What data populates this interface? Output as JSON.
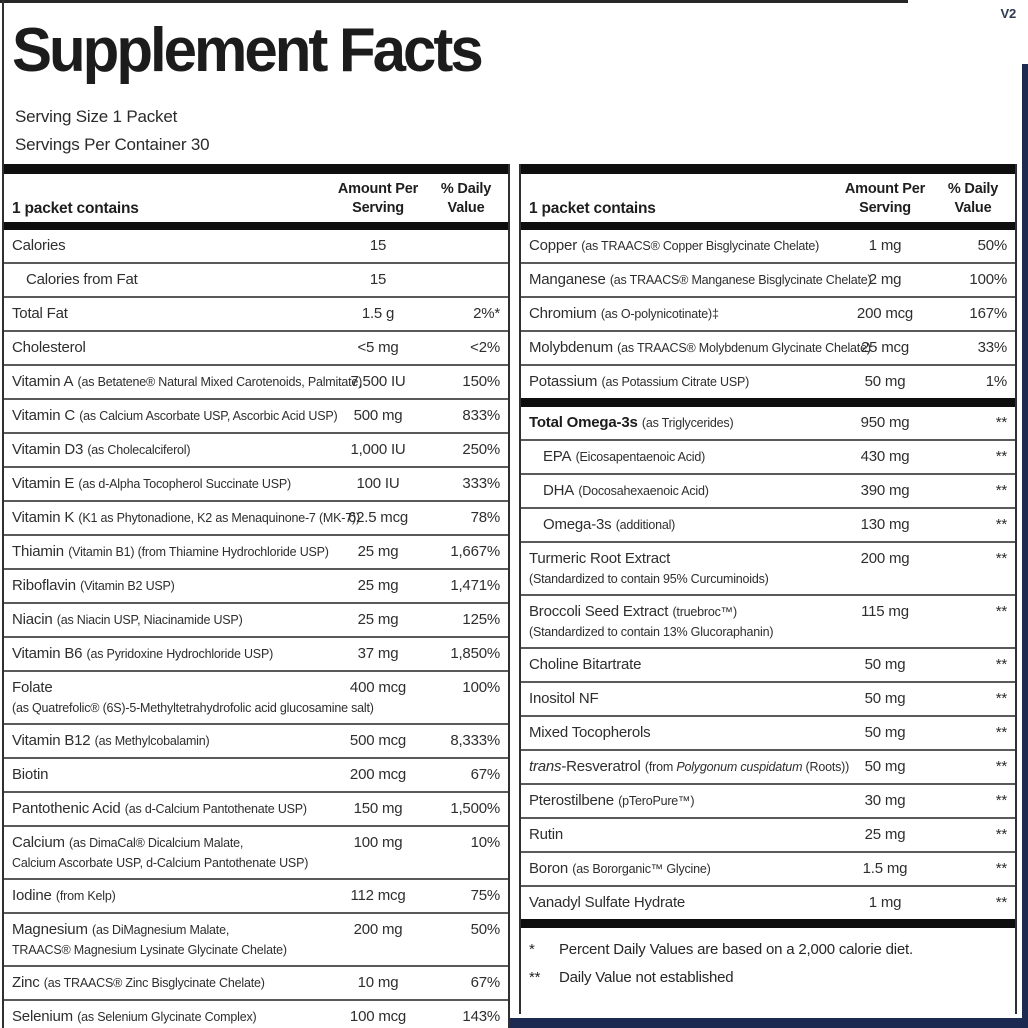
{
  "version_tag": "V2",
  "title": "Supplement Facts",
  "serving_size": "Serving Size 1 Packet",
  "servings_per_container": "Servings Per Container 30",
  "left_column": {
    "header": {
      "contains": "1 packet contains",
      "amount": "Amount Per\nServing",
      "daily": "% Daily\nValue"
    },
    "rows": [
      {
        "name": "Calories",
        "amount": "15",
        "dv": ""
      },
      {
        "name": "Calories from Fat",
        "indent": true,
        "amount": "15",
        "dv": ""
      },
      {
        "name": "Total Fat",
        "amount": "1.5 g",
        "dv": "2%*"
      },
      {
        "name": "Cholesterol",
        "amount": "<5 mg",
        "dv": "<2%"
      },
      {
        "name": "Vitamin A",
        "desc": "(as Betatene® Natural Mixed Carotenoids, Palmitate)",
        "amount": "7,500 IU",
        "dv": "150%"
      },
      {
        "name": "Vitamin C",
        "desc": "(as Calcium Ascorbate USP, Ascorbic Acid USP)",
        "amount": "500 mg",
        "dv": "833%"
      },
      {
        "name": "Vitamin D3",
        "desc": "(as Cholecalciferol)",
        "amount": "1,000 IU",
        "dv": "250%"
      },
      {
        "name": "Vitamin E",
        "desc": "(as d-Alpha Tocopherol Succinate USP)",
        "amount": "100 IU",
        "dv": "333%"
      },
      {
        "name": "Vitamin K",
        "desc": "(K1 as Phytonadione, K2 as Menaquinone-7 (MK-7))",
        "amount": "62.5 mcg",
        "dv": "78%"
      },
      {
        "name": "Thiamin",
        "desc": "(Vitamin B1) (from Thiamine Hydrochloride USP)",
        "amount": "25 mg",
        "dv": "1,667%"
      },
      {
        "name": "Riboflavin",
        "desc": "(Vitamin B2 USP)",
        "amount": "25 mg",
        "dv": "1,471%"
      },
      {
        "name": "Niacin",
        "desc": "(as Niacin USP, Niacinamide USP)",
        "amount": "25 mg",
        "dv": "125%"
      },
      {
        "name": "Vitamin B6",
        "desc": "(as Pyridoxine Hydrochloride USP)",
        "amount": "37 mg",
        "dv": "1,850%"
      },
      {
        "name": "Folate",
        "desc2": "(as Quatrefolic® (6S)-5-Methyltetrahydrofolic acid glucosamine salt)",
        "amount": "400 mcg",
        "dv": "100%"
      },
      {
        "name": "Vitamin B12",
        "desc": "(as Methylcobalamin)",
        "amount": "500 mcg",
        "dv": "8,333%"
      },
      {
        "name": "Biotin",
        "amount": "200 mcg",
        "dv": "67%"
      },
      {
        "name": "Pantothenic Acid",
        "desc": "(as d-Calcium Pantothenate USP)",
        "amount": "150 mg",
        "dv": "1,500%"
      },
      {
        "name": "Calcium",
        "desc": "(as DimaCal® Dicalcium Malate,",
        "desc2": "Calcium Ascorbate USP, d-Calcium Pantothenate USP)",
        "amount": "100 mg",
        "dv": "10%"
      },
      {
        "name": "Iodine",
        "desc": "(from Kelp)",
        "amount": "112 mcg",
        "dv": "75%"
      },
      {
        "name": "Magnesium",
        "desc": "(as DiMagnesium Malate,",
        "desc2": "TRAACS® Magnesium Lysinate Glycinate Chelate)",
        "amount": "200 mg",
        "dv": "50%"
      },
      {
        "name": "Zinc",
        "desc": "(as TRAACS® Zinc Bisglycinate Chelate)",
        "amount": "10 mg",
        "dv": "67%"
      },
      {
        "name": "Selenium",
        "desc": "(as Selenium Glycinate Complex)",
        "amount": "100 mcg",
        "dv": "143%"
      }
    ]
  },
  "right_column": {
    "header": {
      "contains": "1 packet contains",
      "amount": "Amount Per\nServing",
      "daily": "% Daily\nValue"
    },
    "group1": [
      {
        "name": "Copper",
        "desc": "(as TRAACS® Copper Bisglycinate Chelate)",
        "amount": "1 mg",
        "dv": "50%"
      },
      {
        "name": "Manganese",
        "desc": "(as TRAACS® Manganese Bisglycinate Chelate)",
        "amount": "2 mg",
        "dv": "100%"
      },
      {
        "name": "Chromium",
        "desc": "(as O-polynicotinate)‡",
        "amount": "200 mcg",
        "dv": "167%"
      },
      {
        "name": "Molybdenum",
        "desc": "(as TRAACS® Molybdenum Glycinate Chelate)",
        "amount": "25 mcg",
        "dv": "33%"
      },
      {
        "name": "Potassium",
        "desc": "(as Potassium Citrate USP)",
        "amount": "50 mg",
        "dv": "1%"
      }
    ],
    "group2": [
      {
        "name": "Total Omega-3s",
        "bold": true,
        "desc": "(as Triglycerides)",
        "amount": "950 mg",
        "dv": "**"
      },
      {
        "name": "EPA",
        "indent": true,
        "desc": "(Eicosapentaenoic Acid)",
        "amount": "430 mg",
        "dv": "**"
      },
      {
        "name": "DHA",
        "indent": true,
        "desc": "(Docosahexaenoic Acid)",
        "amount": "390 mg",
        "dv": "**"
      },
      {
        "name": "Omega-3s",
        "indent": true,
        "desc": "(additional)",
        "amount": "130 mg",
        "dv": "**"
      },
      {
        "name": "Turmeric Root Extract",
        "desc2": "(Standardized to contain 95% Curcuminoids)",
        "amount": "200 mg",
        "dv": "**"
      },
      {
        "name": "Broccoli Seed Extract",
        "desc": "(truebroc™)",
        "desc2": "(Standardized to contain 13% Glucoraphanin)",
        "amount": "115 mg",
        "dv": "**"
      },
      {
        "name": "Choline Bitartrate",
        "amount": "50 mg",
        "dv": "**"
      },
      {
        "name": "Inositol NF",
        "amount": "50 mg",
        "dv": "**"
      },
      {
        "name": "Mixed Tocopherols",
        "amount": "50 mg",
        "dv": "**"
      },
      {
        "name_segments": [
          {
            "t": "trans",
            "i": true
          },
          {
            "t": "-Resveratrol"
          }
        ],
        "desc_segments": [
          {
            "t": "(from "
          },
          {
            "t": "Polygonum cuspidatum",
            "i": true
          },
          {
            "t": " (Roots))"
          }
        ],
        "amount": "50 mg",
        "dv": "**"
      },
      {
        "name": "Pterostilbene",
        "desc": "(pTeroPure™)",
        "amount": "30 mg",
        "dv": "**"
      },
      {
        "name": "Rutin",
        "amount": "25 mg",
        "dv": "**"
      },
      {
        "name": "Boron",
        "desc": "(as Bororganic™ Glycine)",
        "amount": "1.5 mg",
        "dv": "**"
      },
      {
        "name": "Vanadyl Sulfate Hydrate",
        "amount": "1 mg",
        "dv": "**"
      }
    ],
    "footnotes": [
      {
        "marker": "*",
        "text": "Percent Daily Values are based on a 2,000 calorie diet."
      },
      {
        "marker": "**",
        "text": "Daily Value not established"
      }
    ]
  }
}
